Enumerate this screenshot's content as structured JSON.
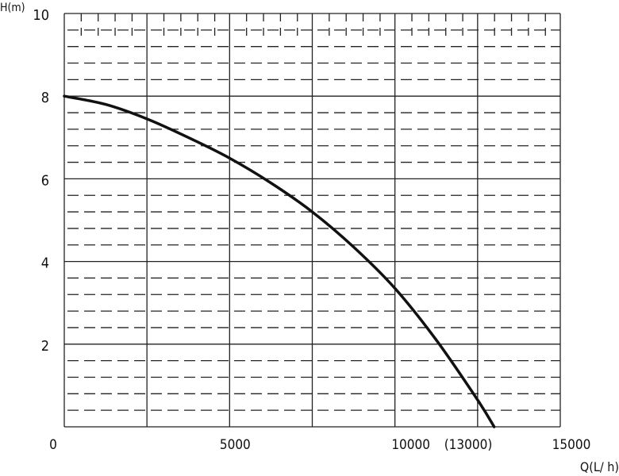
{
  "chart_data": {
    "type": "line",
    "title": "",
    "xlabel": "Q(L/ h)",
    "ylabel": "H(m)",
    "xlim": [
      0,
      15000
    ],
    "ylim": [
      0,
      10
    ],
    "x_ticks": [
      {
        "value": 0,
        "label": "0"
      },
      {
        "value": 5000,
        "label": "5000"
      },
      {
        "value": 10000,
        "label": "10000"
      },
      {
        "value": 13000,
        "label": "(13000)"
      },
      {
        "value": 15000,
        "label": "15000"
      }
    ],
    "y_ticks": [
      {
        "value": 2,
        "label": "2"
      },
      {
        "value": 4,
        "label": "4"
      },
      {
        "value": 6,
        "label": "6"
      },
      {
        "value": 8,
        "label": "8"
      },
      {
        "value": 10,
        "label": "10"
      }
    ],
    "grid": true,
    "x_grid_step": 2500,
    "y_major_step": 2,
    "y_minor_step": 0.4,
    "line_color": "#111111",
    "series": [
      {
        "x": [
          0,
          1250,
          2500,
          3750,
          5000,
          6250,
          7500,
          8750,
          10000,
          11250,
          12500,
          13000
        ],
        "y": [
          8.0,
          7.8,
          7.45,
          7.0,
          6.5,
          5.9,
          5.2,
          4.35,
          3.35,
          2.1,
          0.65,
          0.0
        ]
      }
    ]
  }
}
